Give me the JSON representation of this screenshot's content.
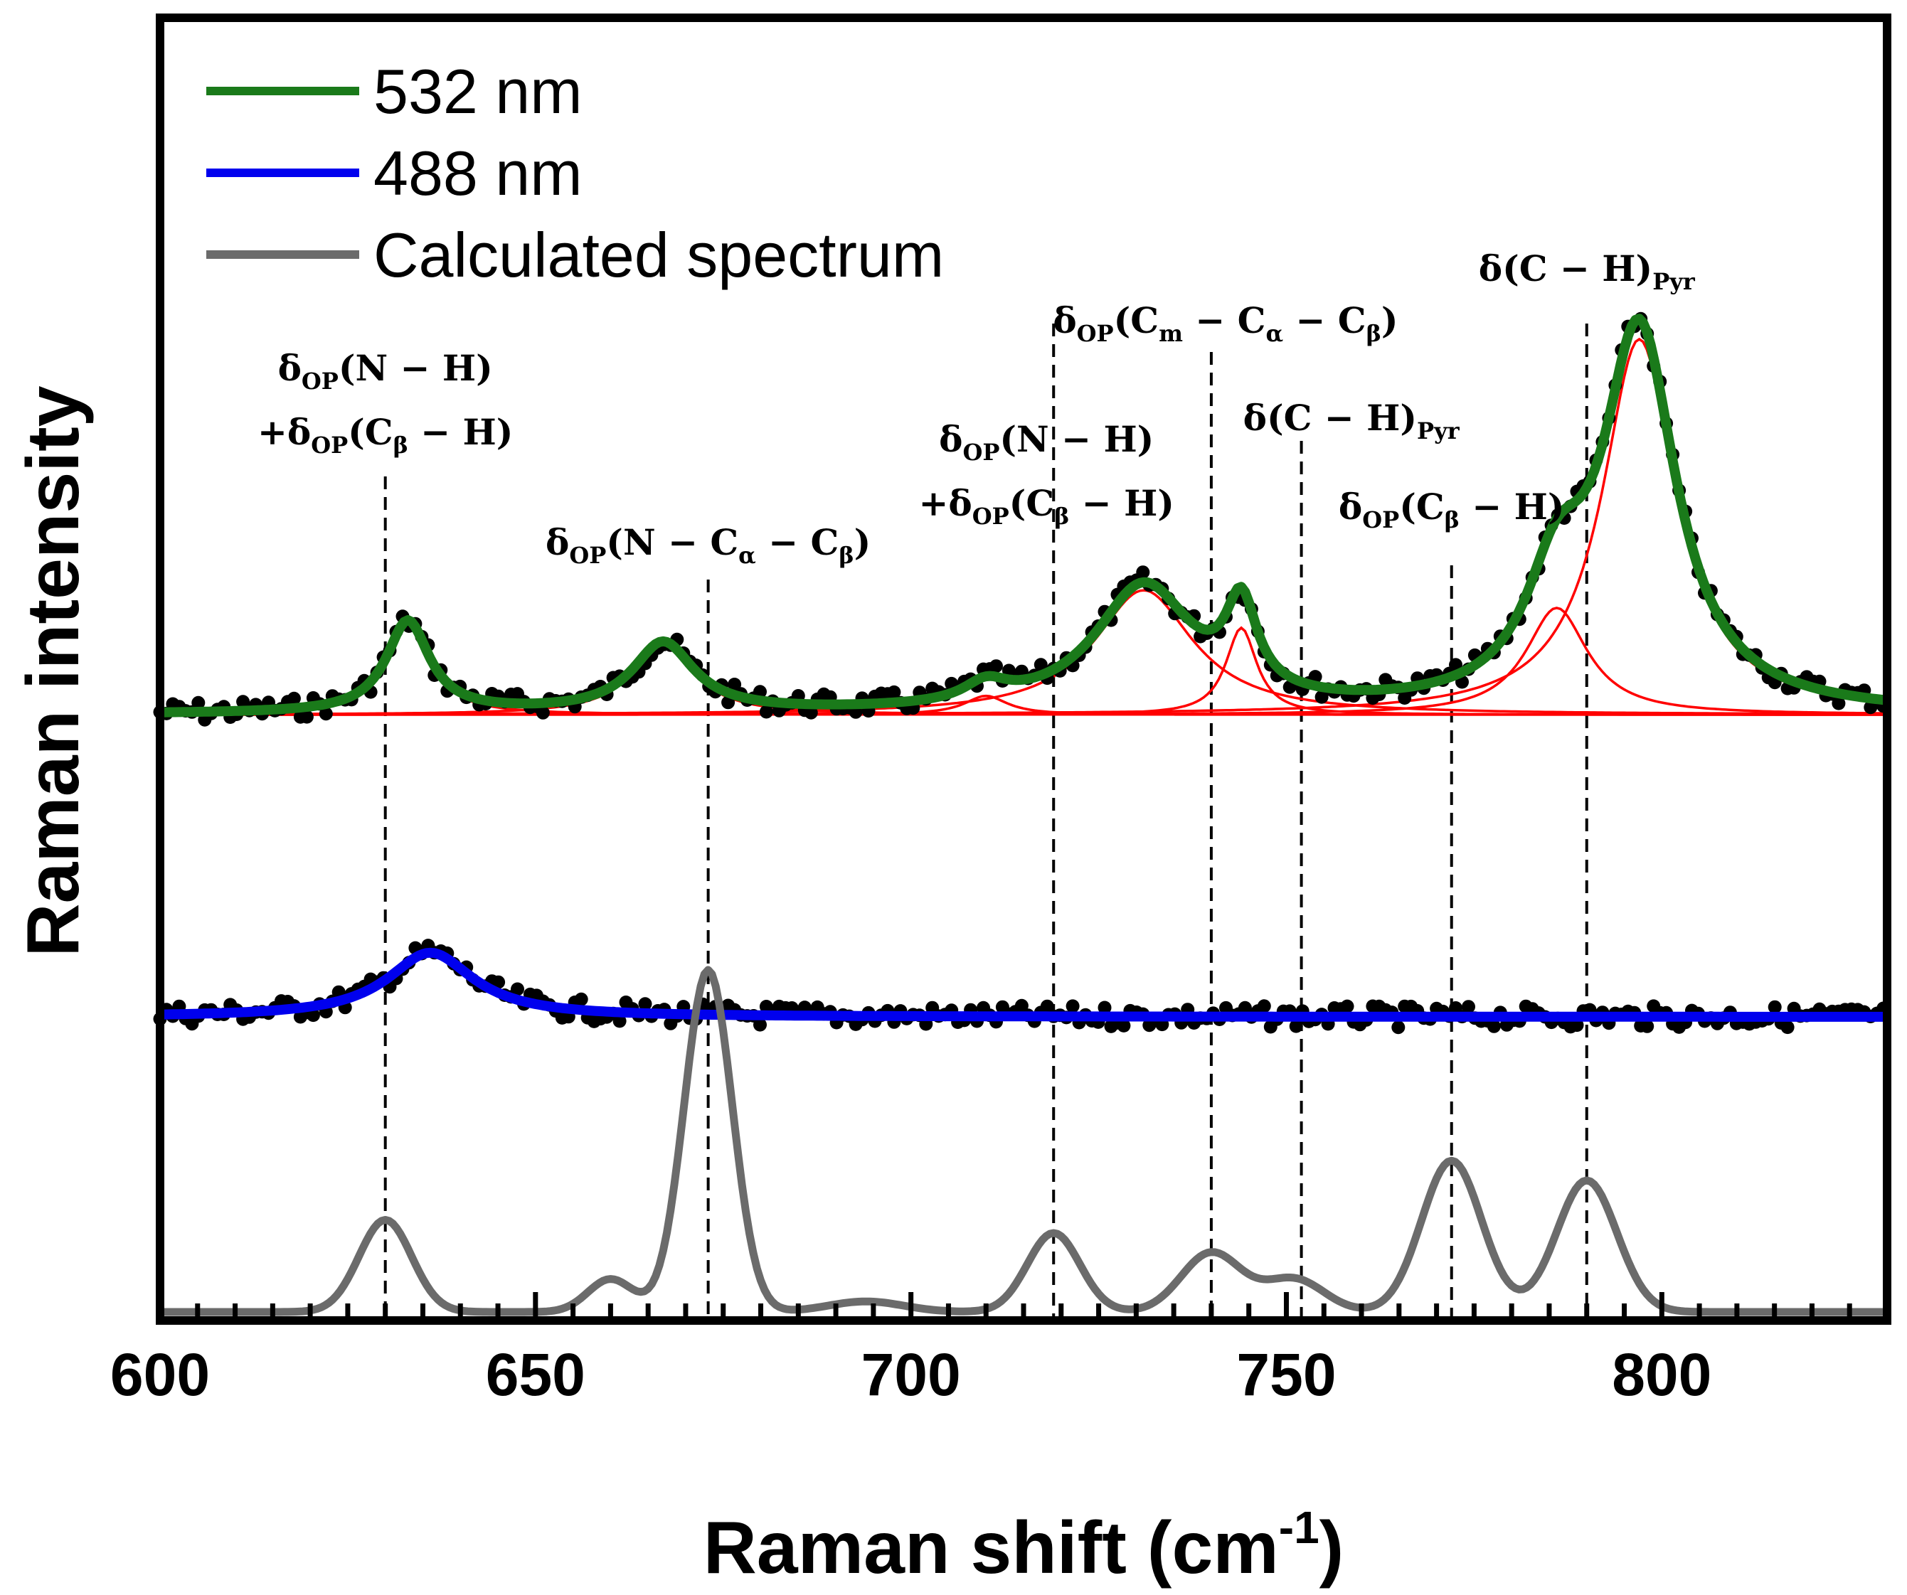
{
  "chart_data": {
    "type": "line",
    "xlabel": "Raman shift (cm",
    "xlabel_sup": "-1",
    "xlabel_close": ")",
    "ylabel": "Raman intensity",
    "xlim": [
      600,
      830
    ],
    "xticks": [
      600,
      650,
      700,
      750,
      800
    ],
    "minor_step": 5,
    "y_units": "arbitrary (stacked, offset traces)",
    "legend": [
      {
        "label": "532 nm",
        "color": "#1a7a1a"
      },
      {
        "label": "488 nm",
        "color": "#0000ee"
      },
      {
        "label": "Calculated spectrum",
        "color": "#6b6b6b"
      }
    ],
    "colors": {
      "points": "#000000",
      "component_fit": "#ff0000",
      "guide_line": "#000000"
    },
    "series": [
      {
        "name": "532 nm",
        "baseline": 1.0,
        "peaks": [
          {
            "center": 633,
            "height": 0.78,
            "width": 3.5
          },
          {
            "center": 667,
            "height": 0.59,
            "width": 5
          },
          {
            "center": 710,
            "height": 0.16,
            "width": 3.5
          },
          {
            "center": 731,
            "height": 1.06,
            "width": 8
          },
          {
            "center": 744,
            "height": 0.74,
            "width": 2.5
          },
          {
            "center": 786,
            "height": 0.91,
            "width": 5
          },
          {
            "center": 797,
            "height": 3.2,
            "width": 6
          }
        ]
      },
      {
        "name": "488 nm",
        "baseline": 0.0,
        "peaks": [
          {
            "center": 636,
            "height": 0.95,
            "width": 7
          }
        ]
      },
      {
        "name": "Calculated spectrum",
        "baseline": 0.0,
        "peaks": [
          {
            "center": 630,
            "height": 0.7,
            "width": 3.5
          },
          {
            "center": 660,
            "height": 0.25,
            "width": 3
          },
          {
            "center": 673,
            "height": 2.6,
            "width": 3.2
          },
          {
            "center": 694,
            "height": 0.08,
            "width": 5
          },
          {
            "center": 719,
            "height": 0.6,
            "width": 3.5
          },
          {
            "center": 740,
            "height": 0.45,
            "width": 4
          },
          {
            "center": 751,
            "height": 0.25,
            "width": 4
          },
          {
            "center": 772,
            "height": 1.15,
            "width": 4
          },
          {
            "center": 790,
            "height": 1.0,
            "width": 4
          }
        ]
      }
    ],
    "annotations": [
      {
        "x": 630,
        "lines": [
          [
            {
              "t": "δ"
            },
            {
              "t": "OP",
              "sub": true
            },
            {
              "t": "(N − H)"
            }
          ],
          [
            {
              "t": "+δ"
            },
            {
              "t": "OP",
              "sub": true
            },
            {
              "t": "(C"
            },
            {
              "t": "β",
              "sub": true
            },
            {
              "t": " − H)"
            }
          ]
        ]
      },
      {
        "x": 673,
        "lines": [
          [
            {
              "t": "δ"
            },
            {
              "t": "OP",
              "sub": true
            },
            {
              "t": "(N − C"
            },
            {
              "t": "α",
              "sub": true
            },
            {
              "t": " − C"
            },
            {
              "t": "β",
              "sub": true
            },
            {
              "t": ")"
            }
          ]
        ]
      },
      {
        "x": 719,
        "lines": [
          [
            {
              "t": "δ"
            },
            {
              "t": "OP",
              "sub": true
            },
            {
              "t": "(N − H)"
            }
          ],
          [
            {
              "t": "+δ"
            },
            {
              "t": "OP",
              "sub": true
            },
            {
              "t": "(C"
            },
            {
              "t": "β",
              "sub": true
            },
            {
              "t": " − H)"
            }
          ]
        ]
      },
      {
        "x": 740,
        "lines": [
          [
            {
              "t": "δ"
            },
            {
              "t": "OP",
              "sub": true
            },
            {
              "t": "(C"
            },
            {
              "t": "m",
              "sub": true
            },
            {
              "t": " − C"
            },
            {
              "t": "α",
              "sub": true
            },
            {
              "t": " − C"
            },
            {
              "t": "β",
              "sub": true
            },
            {
              "t": ")"
            }
          ]
        ]
      },
      {
        "x": 752,
        "lines": [
          [
            {
              "t": "δ(C − H)"
            },
            {
              "t": "Pyr",
              "sub": true
            }
          ]
        ]
      },
      {
        "x": 772,
        "lines": [
          [
            {
              "t": "δ"
            },
            {
              "t": "OP",
              "sub": true
            },
            {
              "t": "(C"
            },
            {
              "t": "β",
              "sub": true
            },
            {
              "t": " − H)"
            }
          ]
        ]
      },
      {
        "x": 790,
        "lines": [
          [
            {
              "t": "δ(C − H)"
            },
            {
              "t": "Pyr",
              "sub": true
            }
          ]
        ]
      }
    ]
  }
}
